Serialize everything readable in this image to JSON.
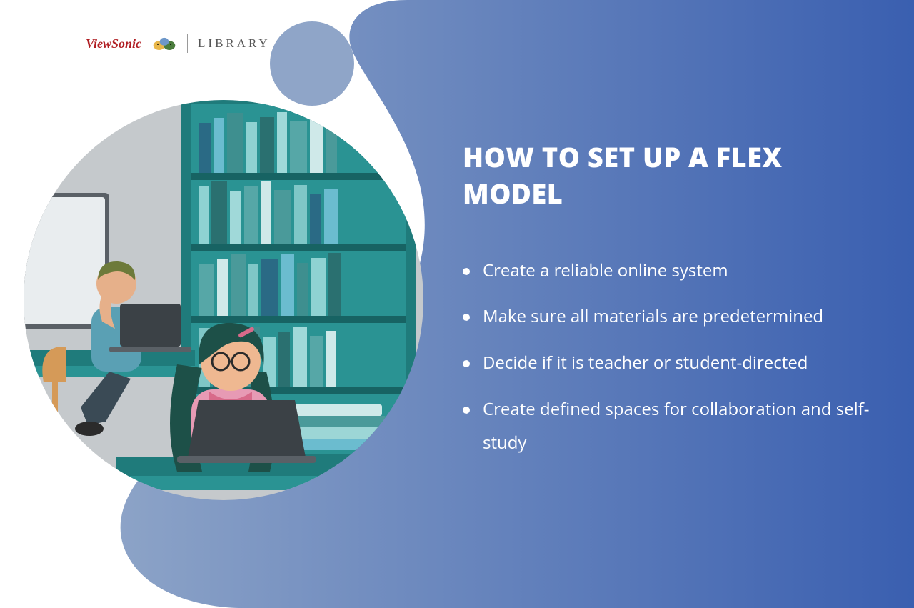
{
  "logo": {
    "brand_text": "ViewSonic",
    "brand_color": "#b01e23",
    "library_text": "LIBRARY",
    "library_color": "#555555",
    "bird_colors": {
      "left": "#e9b74a",
      "right": "#4a7c3c",
      "middle": "#6d97c9"
    }
  },
  "background": {
    "gradient_from": "#8ca3c7",
    "gradient_to": "#3a5fb0",
    "small_circle_color": "#8fa5c8",
    "page_bg": "#ffffff"
  },
  "title": {
    "text": "HOW TO SET UP A FLEX MODEL",
    "fontsize": 38,
    "color": "#ffffff"
  },
  "bullets": {
    "fontsize": 24,
    "color": "#ffffff",
    "items": [
      "Create a reliable online system",
      "Make sure all materials are predetermined",
      "Decide if it is teacher or student-directed",
      "Create defined spaces for collaboration and self-study"
    ]
  },
  "illustration": {
    "type": "infographic",
    "bg_wall": "#c5c9cc",
    "bookshelf_frame": "#1f7b7b",
    "bookshelf_fill": "#2a9393",
    "shelf_shadow": "#176363",
    "book_colors": [
      "#2a6a85",
      "#6bbccf",
      "#3e8f8f",
      "#8fd2d2",
      "#2a7070",
      "#a0d9d9",
      "#56a7a7",
      "#cfe9e9",
      "#4a9a9a",
      "#7fc7c7"
    ],
    "stacked_book_colors": [
      "#6bbccf",
      "#9cd6d6",
      "#4a9a9a",
      "#cfe9e9"
    ],
    "whiteboard_bg": "#e9edef",
    "whiteboard_frame": "#5a6066",
    "desk_top": "#1f7b7b",
    "desk_side": "#2a9393",
    "laptop_body": "#5a6066",
    "laptop_screen": "#3b4146",
    "chair_color": "#d59a58",
    "person1": {
      "hair": "#6d7a3a",
      "skin": "#e6b08a",
      "shirt": "#5aa0b4",
      "pants": "#3a4a55",
      "shoes": "#2b2b2b"
    },
    "person2": {
      "hair": "#1d5048",
      "skin": "#efb891",
      "shirt": "#e79ab4",
      "accent": "#d86a8a",
      "hairpin": "#d86a8a",
      "glasses": "#2b2b2b"
    }
  }
}
